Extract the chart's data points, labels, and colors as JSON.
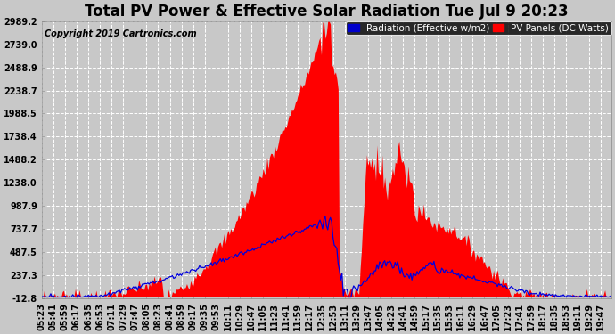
{
  "title": "Total PV Power & Effective Solar Radiation Tue Jul 9 20:23",
  "copyright": "Copyright 2019 Cartronics.com",
  "legend_radiation": "Radiation (Effective w/m2)",
  "legend_pv": "PV Panels (DC Watts)",
  "bg_color": "#c8c8c8",
  "plot_bg_color": "#c8c8c8",
  "red_color": "#ff0000",
  "blue_color": "#0000dd",
  "yticks": [
    -12.8,
    237.3,
    487.5,
    737.7,
    987.9,
    1238.0,
    1488.2,
    1738.4,
    1988.5,
    2238.7,
    2488.9,
    2739.0,
    2989.2
  ],
  "ymin": -12.8,
  "ymax": 2989.2,
  "title_fontsize": 12,
  "copyright_fontsize": 7,
  "tick_fontsize": 7,
  "legend_fontsize": 7.5
}
